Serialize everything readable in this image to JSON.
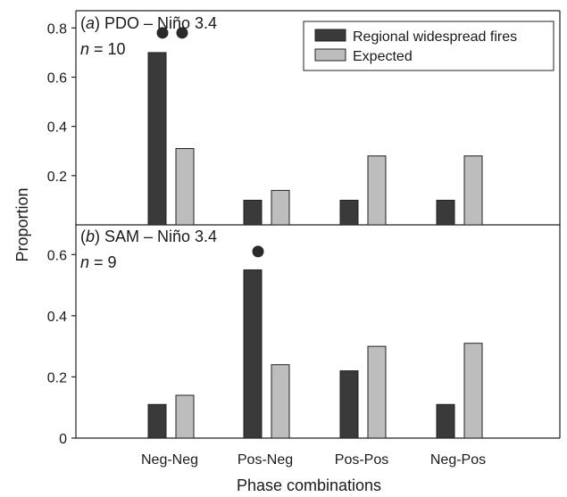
{
  "chart_data": [
    {
      "type": "bar",
      "panel_label": "(a)",
      "panel_title": "PDO – Niño 3.4",
      "n_label": "n = 10",
      "categories": [
        "Neg-Neg",
        "Pos-Neg",
        "Pos-Pos",
        "Neg-Pos"
      ],
      "series": [
        {
          "name": "Regional widespread fires",
          "values": [
            0.7,
            0.1,
            0.1,
            0.1
          ],
          "color": "#3a3a3a"
        },
        {
          "name": "Expected",
          "values": [
            0.31,
            0.14,
            0.28,
            0.28
          ],
          "color": "#bdbdbd"
        }
      ],
      "markers": [
        {
          "category": "Neg-Neg",
          "count": 2,
          "y": 0.78
        }
      ],
      "ylim": [
        0,
        0.87
      ],
      "yticks": [
        0.2,
        0.4,
        0.6,
        0.8
      ],
      "legend_position": "top-right"
    },
    {
      "type": "bar",
      "panel_label": "(b)",
      "panel_title": "SAM – Niño 3.4",
      "n_label": "n = 9",
      "categories": [
        "Neg-Neg",
        "Pos-Neg",
        "Pos-Pos",
        "Neg-Pos"
      ],
      "series": [
        {
          "name": "Regional widespread fires",
          "values": [
            0.11,
            0.55,
            0.22,
            0.11
          ],
          "color": "#3a3a3a"
        },
        {
          "name": "Expected",
          "values": [
            0.14,
            0.24,
            0.3,
            0.31
          ],
          "color": "#bdbdbd"
        }
      ],
      "markers": [
        {
          "category": "Pos-Neg",
          "count": 1,
          "y": 0.61
        }
      ],
      "ylim": [
        0,
        0.7
      ],
      "yticks": [
        0,
        0.2,
        0.4,
        0.6
      ]
    }
  ],
  "xlabel": "Phase combinations",
  "ylabel": "Proportion"
}
